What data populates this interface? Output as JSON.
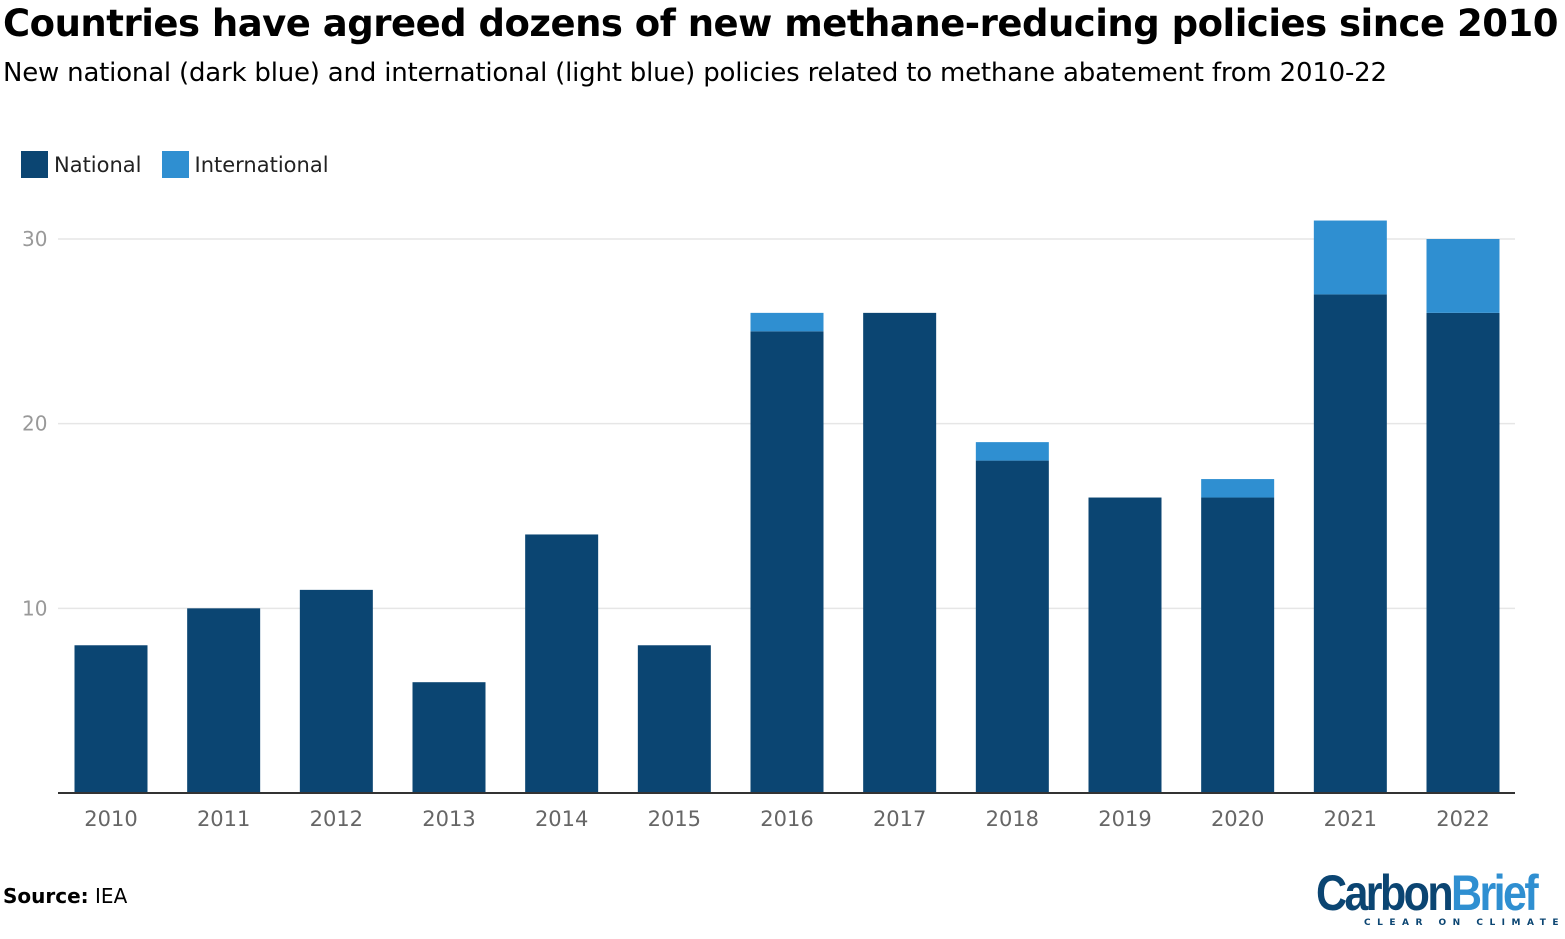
{
  "title": "Countries have agreed dozens of new methane-reducing policies since 2010",
  "subtitle": "New national (dark blue) and international (light blue) policies related to methane abatement from 2010-22",
  "source_label": "Source:",
  "source_value": "IEA",
  "logo": {
    "carbon": "Carbon",
    "brief": "Brief",
    "tagline": "CLEAR ON CLIMATE"
  },
  "colors": {
    "national": "#0b4572",
    "international": "#2f8fd1",
    "grid": "#e6e6e6",
    "axis_text": "#666666"
  },
  "chart_data": {
    "type": "bar",
    "stacked": true,
    "categories": [
      "2010",
      "2011",
      "2012",
      "2013",
      "2014",
      "2015",
      "2016",
      "2017",
      "2018",
      "2019",
      "2020",
      "2021",
      "2022"
    ],
    "series": [
      {
        "name": "National",
        "values": [
          8,
          10,
          11,
          6,
          14,
          8,
          25,
          26,
          18,
          16,
          16,
          27,
          26
        ]
      },
      {
        "name": "International",
        "values": [
          0,
          0,
          0,
          0,
          0,
          0,
          1,
          0,
          1,
          0,
          1,
          4,
          4
        ]
      }
    ],
    "ylim": [
      0,
      30
    ],
    "yticks": [
      "10",
      "20",
      "30"
    ],
    "grid": true,
    "legend_position": "top-left"
  }
}
